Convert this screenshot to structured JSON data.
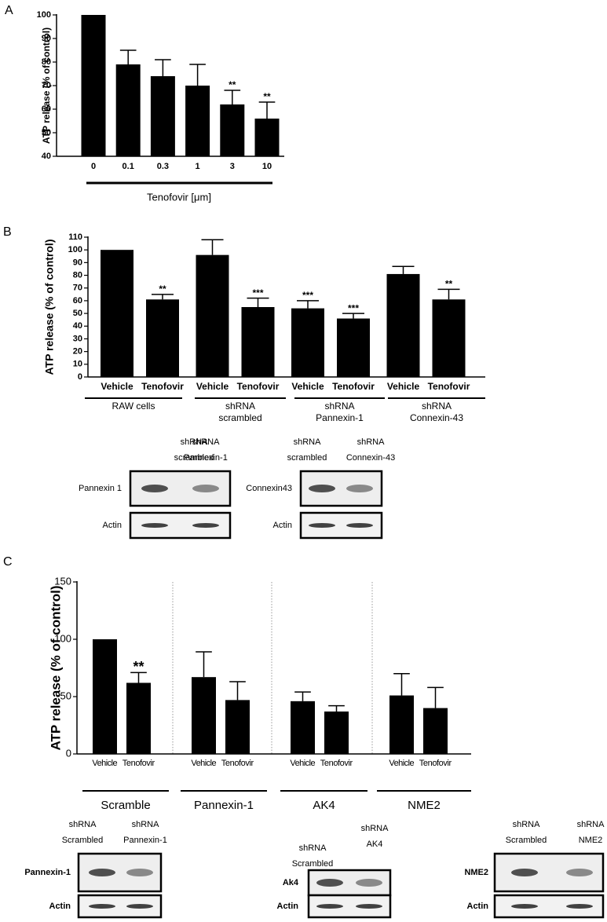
{
  "panels": [
    "A",
    "B",
    "C"
  ],
  "chart_data": [
    {
      "type": "bar",
      "ylabel": "ATP release (% of control)",
      "xlabel": "Tenofovir [μm]",
      "categories": [
        "0",
        "0.1",
        "0.3",
        "1",
        "3",
        "10"
      ],
      "values": [
        100,
        79,
        74,
        70,
        62,
        56
      ],
      "errors": [
        null,
        6,
        7,
        9,
        6,
        7
      ],
      "significance": [
        null,
        null,
        null,
        null,
        "**",
        "**"
      ],
      "color": "#000000",
      "ylim": [
        40,
        100
      ],
      "yticks": [
        40,
        50,
        60,
        70,
        80,
        90,
        100
      ]
    },
    {
      "type": "bar",
      "ylabel": "ATP release (% of control)",
      "categories": [
        "Vehicle",
        "Tenofovir",
        "Vehicle",
        "Tenofovir",
        "Vehicle",
        "Tenofovir",
        "Vehicle",
        "Tenofovir"
      ],
      "values": [
        100,
        61,
        96,
        55,
        54,
        46,
        81,
        61
      ],
      "errors": [
        null,
        4,
        12,
        7,
        6,
        4,
        6,
        8
      ],
      "significance": [
        null,
        "**",
        null,
        "***",
        "***",
        "***",
        null,
        "**"
      ],
      "groups": [
        [
          "RAW cells"
        ],
        [
          "shRNA",
          "scrambled"
        ],
        [
          "shRNA",
          "Pannexin-1"
        ],
        [
          "shRNA",
          "Connexin-43"
        ]
      ],
      "color": "#000000",
      "ylim": [
        0,
        110
      ],
      "yticks": [
        0,
        10,
        20,
        30,
        40,
        50,
        60,
        70,
        80,
        90,
        100,
        110
      ]
    },
    {
      "type": "bar",
      "ylabel": "ATP release (% of control)",
      "categories": [
        "Vehicle",
        "Tenofovir",
        "Vehicle",
        "Tenofovir",
        "Vehicle",
        "Tenofovir",
        "Vehicle",
        "Tenofovir"
      ],
      "values": [
        100,
        62,
        67,
        47,
        46,
        37,
        51,
        40
      ],
      "errors": [
        null,
        9,
        22,
        16,
        8,
        5,
        19,
        18
      ],
      "significance": [
        null,
        "**",
        null,
        null,
        null,
        null,
        null,
        null
      ],
      "groups": [
        [
          "Scramble"
        ],
        [
          "Pannexin-1"
        ],
        [
          "AK4"
        ],
        [
          "NME2"
        ]
      ],
      "color": "#000000",
      "ylim": [
        0,
        150
      ],
      "yticks": [
        0,
        50,
        100,
        150
      ]
    }
  ],
  "blots": [
    {
      "columns": [
        [
          "shRNA",
          "scrambled"
        ],
        [
          "shRNA",
          "Pannexin-1"
        ]
      ],
      "rows": [
        "Pannexin 1",
        "Actin"
      ]
    },
    {
      "columns": [
        [
          "shRNA",
          "scrambled"
        ],
        [
          "shRNA",
          "Connexin-43"
        ]
      ],
      "rows": [
        "Connexin43",
        "Actin"
      ]
    },
    {
      "columns": [
        [
          "shRNA",
          "Scrambled"
        ],
        [
          "shRNA",
          "Pannexin-1"
        ]
      ],
      "rows": [
        "Pannexin-1",
        "Actin"
      ]
    },
    {
      "columns": [
        [
          "shRNA",
          "Scrambled"
        ],
        [
          "shRNA",
          "AK4"
        ]
      ],
      "rows": [
        "Ak4",
        "Actin"
      ]
    },
    {
      "columns": [
        [
          "shRNA",
          "Scrambled"
        ],
        [
          "shRNA",
          "NME2"
        ]
      ],
      "rows": [
        "NME2",
        "Actin"
      ]
    }
  ]
}
